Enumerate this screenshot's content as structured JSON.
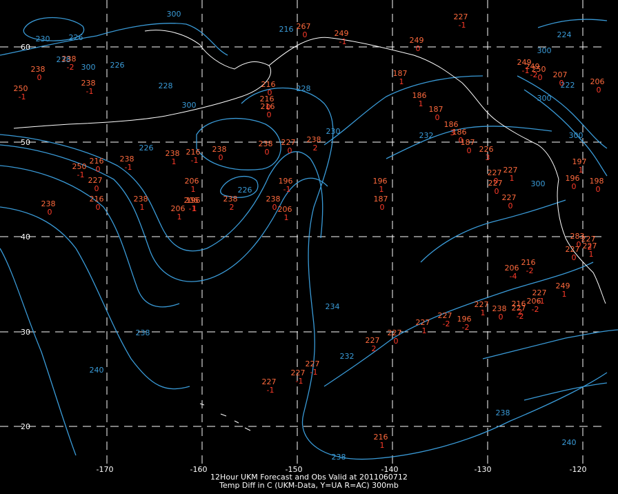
{
  "caption": {
    "line1": "12Hour UKM Forecast and Obs Valid at 2011060712",
    "line2": "Temp Diff in C (UKM-Data, Y=UA R=AC) 300mb"
  },
  "colors": {
    "background": "#000000",
    "grid": "#ffffff",
    "contour": "#3a9bd8",
    "obs_value": "#ff6a3d",
    "obs_diff": "#ff3b2a",
    "coastline": "#ffffff"
  },
  "axes": {
    "longitude_ticks": [
      "-170",
      "-160",
      "-150",
      "-140",
      "-130",
      "-120"
    ],
    "latitude_ticks": [
      "60",
      "50",
      "40",
      "30",
      "20"
    ]
  },
  "contour_labels": [
    "230",
    "226",
    "300",
    "238",
    "226",
    "300",
    "228",
    "216",
    "300",
    "228",
    "230",
    "226",
    "232",
    "226",
    "234",
    "232",
    "238",
    "240",
    "238",
    "238",
    "240",
    "222",
    "224",
    "300",
    "300",
    "300",
    "300"
  ],
  "observations": [
    {
      "v": "238",
      "d": "0"
    },
    {
      "v": "250",
      "d": "-1"
    },
    {
      "v": "238",
      "d": "-1"
    },
    {
      "v": "238",
      "d": "-2"
    },
    {
      "v": "216",
      "d": "0"
    },
    {
      "v": "216",
      "d": "0"
    },
    {
      "v": "216",
      "d": "0"
    },
    {
      "v": "238",
      "d": "1"
    },
    {
      "v": "216",
      "d": "-1"
    },
    {
      "v": "238",
      "d": "0"
    },
    {
      "v": "238",
      "d": "2"
    },
    {
      "v": "227",
      "d": "0"
    },
    {
      "v": "238",
      "d": "-1"
    },
    {
      "v": "216",
      "d": "0"
    },
    {
      "v": "250",
      "d": "-1"
    },
    {
      "v": "227",
      "d": "0"
    },
    {
      "v": "216",
      "d": "0"
    },
    {
      "v": "206",
      "d": "1"
    },
    {
      "v": "238",
      "d": "0"
    },
    {
      "v": "238",
      "d": "1"
    },
    {
      "v": "206",
      "d": "-1"
    },
    {
      "v": "196",
      "d": "1"
    },
    {
      "v": "206",
      "d": "1"
    },
    {
      "v": "238",
      "d": "2"
    },
    {
      "v": "238",
      "d": "0"
    },
    {
      "v": "196",
      "d": "-1"
    },
    {
      "v": "206",
      "d": "1"
    },
    {
      "v": "196",
      "d": "1"
    },
    {
      "v": "187",
      "d": "0"
    },
    {
      "v": "187",
      "d": "1"
    },
    {
      "v": "186",
      "d": "1"
    },
    {
      "v": "187",
      "d": "0"
    },
    {
      "v": "186",
      "d": "3"
    },
    {
      "v": "186",
      "d": "0"
    },
    {
      "v": "187",
      "d": "0"
    },
    {
      "v": "226",
      "d": "3"
    },
    {
      "v": "227",
      "d": "0"
    },
    {
      "v": "227",
      "d": "0"
    },
    {
      "v": "227",
      "d": "0"
    },
    {
      "v": "227",
      "d": "1"
    },
    {
      "v": "249",
      "d": "-2"
    },
    {
      "v": "250",
      "d": "0"
    },
    {
      "v": "249",
      "d": "-1"
    },
    {
      "v": "207",
      "d": "0"
    },
    {
      "v": "206",
      "d": "0"
    },
    {
      "v": "197",
      "d": "1"
    },
    {
      "v": "196",
      "d": "0"
    },
    {
      "v": "198",
      "d": "0"
    },
    {
      "v": "206",
      "d": "-4"
    },
    {
      "v": "216",
      "d": "-2"
    },
    {
      "v": "227",
      "d": "-2"
    },
    {
      "v": "249",
      "d": "1"
    },
    {
      "v": "206",
      "d": "-2"
    },
    {
      "v": "216",
      "d": "2"
    },
    {
      "v": "227",
      "d": "-1"
    },
    {
      "v": "238",
      "d": "0"
    },
    {
      "v": "227",
      "d": "1"
    },
    {
      "v": "196",
      "d": "-2"
    },
    {
      "v": "227",
      "d": "-2"
    },
    {
      "v": "227",
      "d": "1"
    },
    {
      "v": "227",
      "d": "2"
    },
    {
      "v": "227",
      "d": "0"
    },
    {
      "v": "227",
      "d": "-1"
    },
    {
      "v": "227",
      "d": "-1"
    },
    {
      "v": "227",
      "d": "-1"
    },
    {
      "v": "216",
      "d": "1"
    },
    {
      "v": "283",
      "d": "0"
    },
    {
      "v": "227",
      "d": "0"
    },
    {
      "v": "227",
      "d": "1"
    },
    {
      "v": "227",
      "d": "2"
    },
    {
      "v": "267",
      "d": "0"
    },
    {
      "v": "249",
      "d": "-1"
    },
    {
      "v": "238",
      "d": "0"
    },
    {
      "v": "249",
      "d": "0"
    },
    {
      "v": "227",
      "d": "-1"
    }
  ]
}
